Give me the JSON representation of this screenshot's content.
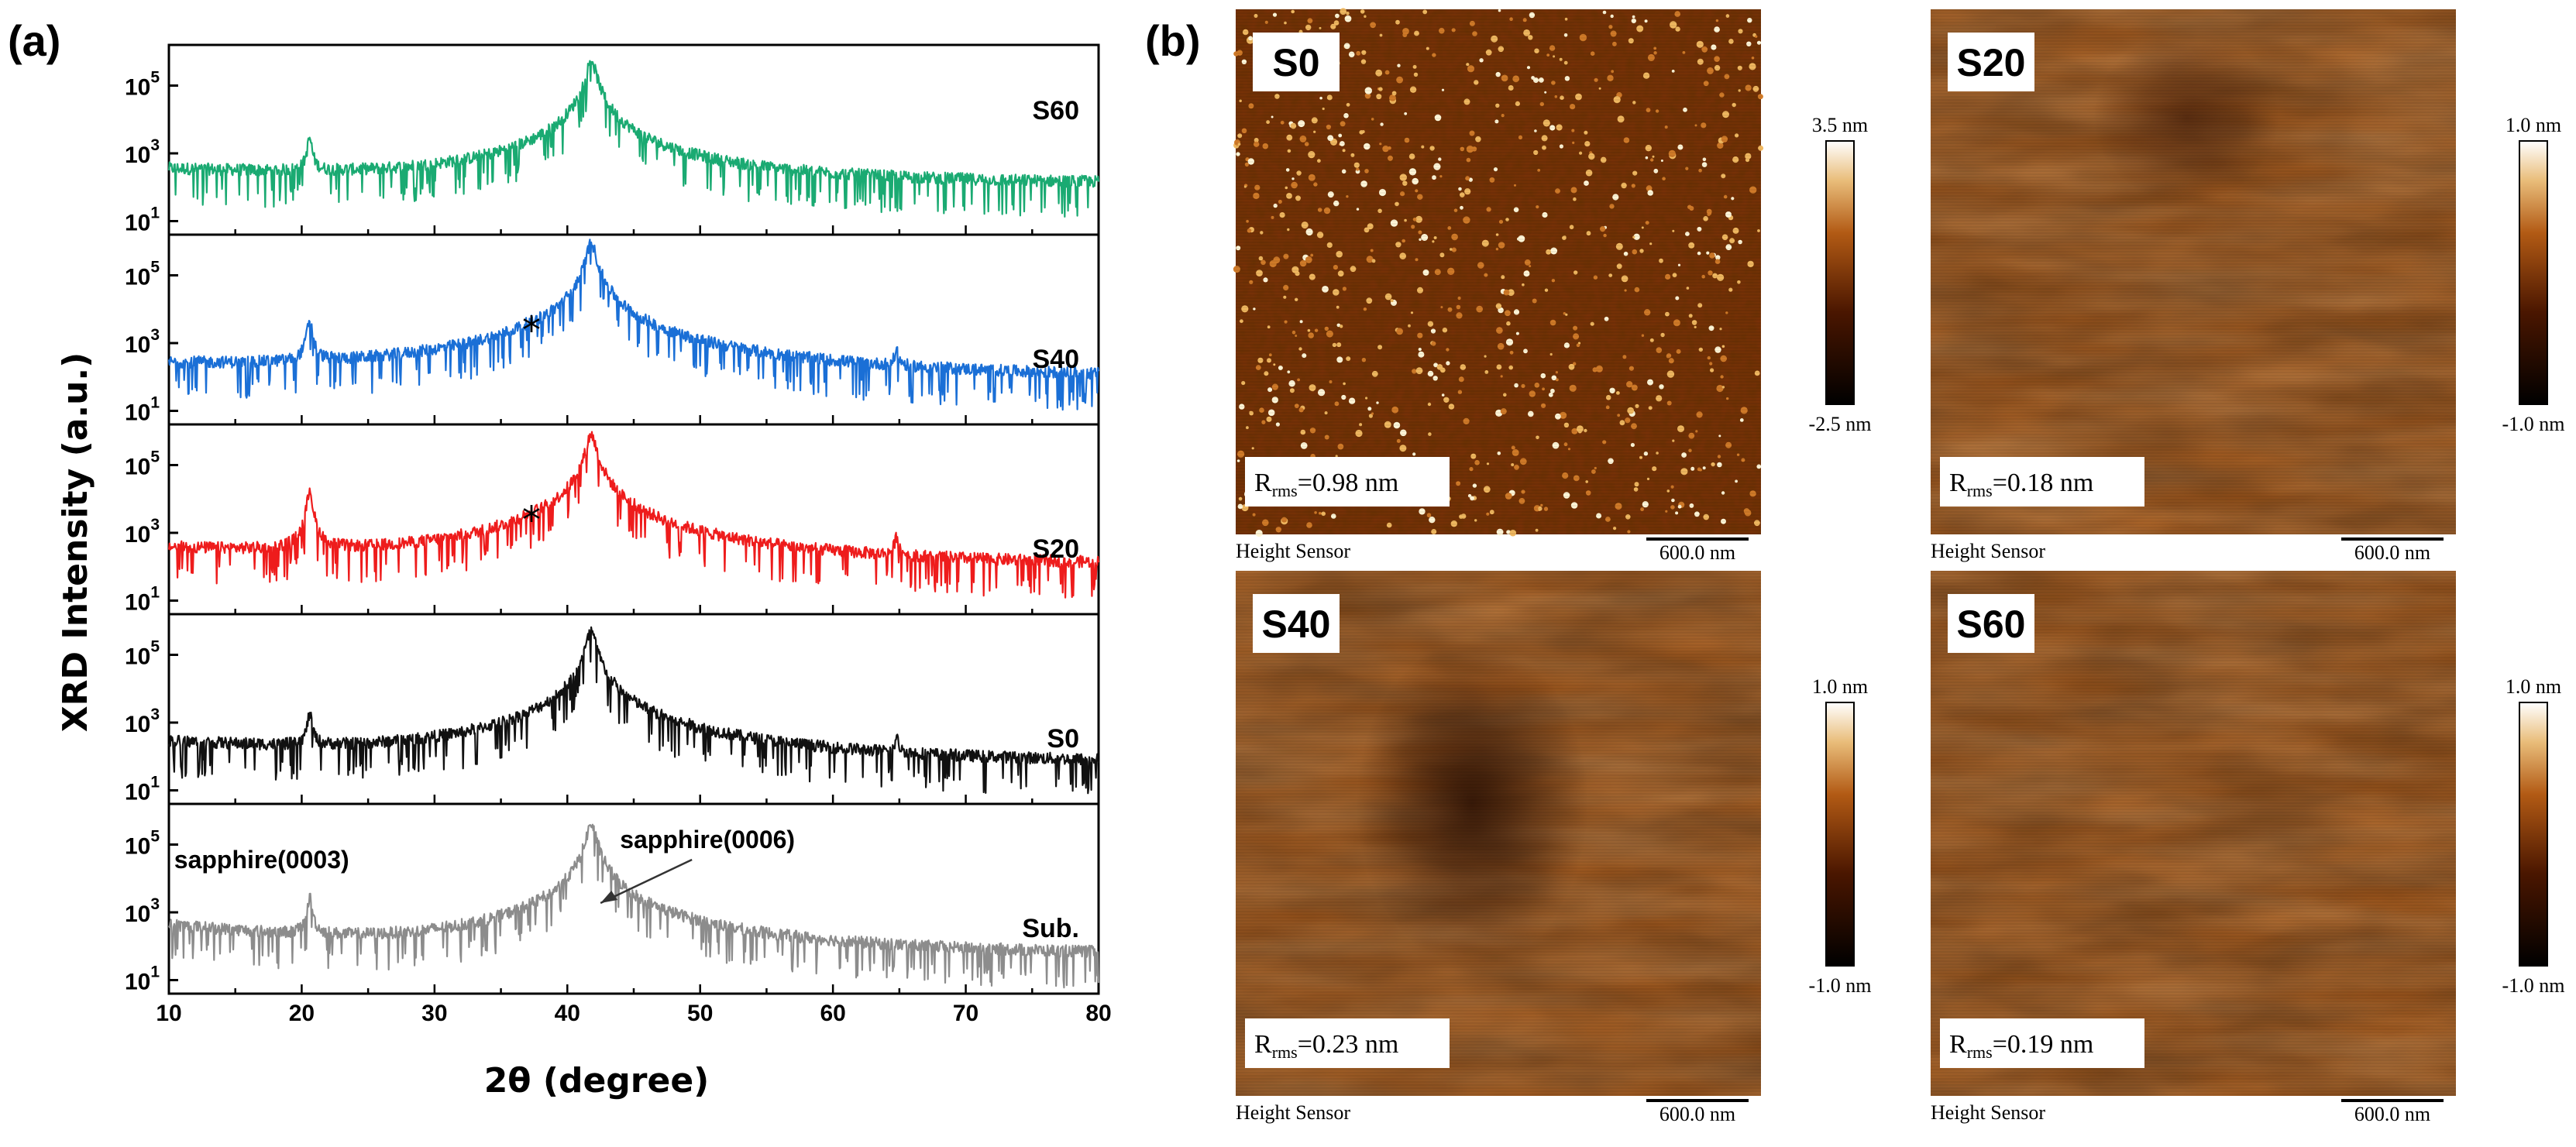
{
  "panel_a_label": "(a)",
  "panel_b_label": "(b)",
  "chart_data": {
    "type": "line",
    "title": "",
    "xlabel": "2θ (degree)",
    "ylabel": "XRD Intensity (a.u.)",
    "xlim": [
      10,
      80
    ],
    "xticks": [
      "10",
      "20",
      "30",
      "40",
      "50",
      "60",
      "70",
      "80"
    ],
    "ylim_log10": [
      0.6,
      6.2
    ],
    "ytick_base": "10",
    "ytick_exponents": [
      "1",
      "3",
      "5"
    ],
    "y_scale": "log",
    "stacked_panels": true,
    "series": [
      {
        "name": "S60",
        "color": "#1aaa72",
        "baseline_log10": 2.05,
        "baseline_at_10": 2.5,
        "peaks": [
          {
            "x": 20.6,
            "log10": 3.4,
            "width": 0.15
          },
          {
            "x": 41.8,
            "log10": 5.75,
            "width": 0.3
          }
        ]
      },
      {
        "name": "S40",
        "color": "#1a6fd6",
        "baseline_log10": 1.85,
        "baseline_at_10": 2.3,
        "peaks": [
          {
            "x": 20.6,
            "log10": 3.7,
            "width": 0.15
          },
          {
            "x": 37.3,
            "log10": 2.6,
            "width": 1.0
          },
          {
            "x": 41.8,
            "log10": 5.95,
            "width": 0.3
          },
          {
            "x": 64.8,
            "log10": 2.6,
            "width": 0.15
          }
        ]
      },
      {
        "name": "S20",
        "color": "#ee1c1c",
        "baseline_log10": 1.95,
        "baseline_at_10": 2.5,
        "peaks": [
          {
            "x": 20.6,
            "log10": 4.3,
            "width": 0.15
          },
          {
            "x": 37.3,
            "log10": 2.7,
            "width": 1.0
          },
          {
            "x": 41.8,
            "log10": 5.9,
            "width": 0.3
          },
          {
            "x": 64.8,
            "log10": 2.75,
            "width": 0.15
          }
        ]
      },
      {
        "name": "S0",
        "color": "#111111",
        "baseline_log10": 1.7,
        "baseline_at_10": 2.4,
        "peaks": [
          {
            "x": 20.6,
            "log10": 3.2,
            "width": 0.15
          },
          {
            "x": 41.8,
            "log10": 5.7,
            "width": 0.3
          },
          {
            "x": 64.8,
            "log10": 2.3,
            "width": 0.15
          }
        ]
      },
      {
        "name": "Sub.",
        "color": "#8c8c8c",
        "baseline_log10": 1.65,
        "baseline_at_10": 2.6,
        "peaks": [
          {
            "x": 20.6,
            "log10": 3.4,
            "width": 0.15
          },
          {
            "x": 41.8,
            "log10": 5.6,
            "width": 0.3
          }
        ]
      }
    ],
    "annotations": [
      {
        "panel": "S40",
        "text": "*",
        "x": 37.3
      },
      {
        "panel": "S20",
        "text": "*",
        "x": 37.3
      },
      {
        "panel": "Sub.",
        "text": "sapphire(0003)",
        "x": 20.6
      },
      {
        "panel": "Sub.",
        "text": "sapphire(0006)",
        "x": 41.8,
        "arrow": true
      }
    ]
  },
  "afm_images": [
    {
      "sample": "S0",
      "rms_prefix": "R",
      "rms_sub": "rms",
      "rms_value": "=0.98  nm",
      "caption_left": "Height Sensor",
      "scale_bar": "600.0 nm",
      "cb_max": "3.5 nm",
      "cb_min": "-2.5 nm",
      "texture": "grainy"
    },
    {
      "sample": "S20",
      "rms_prefix": "R",
      "rms_sub": "rms",
      "rms_value": "=0.18  nm",
      "caption_left": "Height Sensor",
      "scale_bar": "600.0 nm",
      "cb_max": "1.0 nm",
      "cb_min": "-1.0 nm",
      "texture": "smooth"
    },
    {
      "sample": "S40",
      "rms_prefix": "R",
      "rms_sub": "rms",
      "rms_value": "=0.23  nm",
      "caption_left": "Height Sensor",
      "scale_bar": "600.0 nm",
      "cb_max": "1.0 nm",
      "cb_min": "-1.0 nm",
      "texture": "smooth-dark-center"
    },
    {
      "sample": "S60",
      "rms_prefix": "R",
      "rms_sub": "rms",
      "rms_value": "=0.19  nm",
      "caption_left": "Height Sensor",
      "scale_bar": "600.0 nm",
      "cb_max": "1.0 nm",
      "cb_min": "-1.0 nm",
      "texture": "smooth"
    }
  ],
  "colors": {
    "afm_dark": "#2a0d00",
    "afm_mid": "#9a4a12",
    "afm_light": "#fff3d6"
  }
}
